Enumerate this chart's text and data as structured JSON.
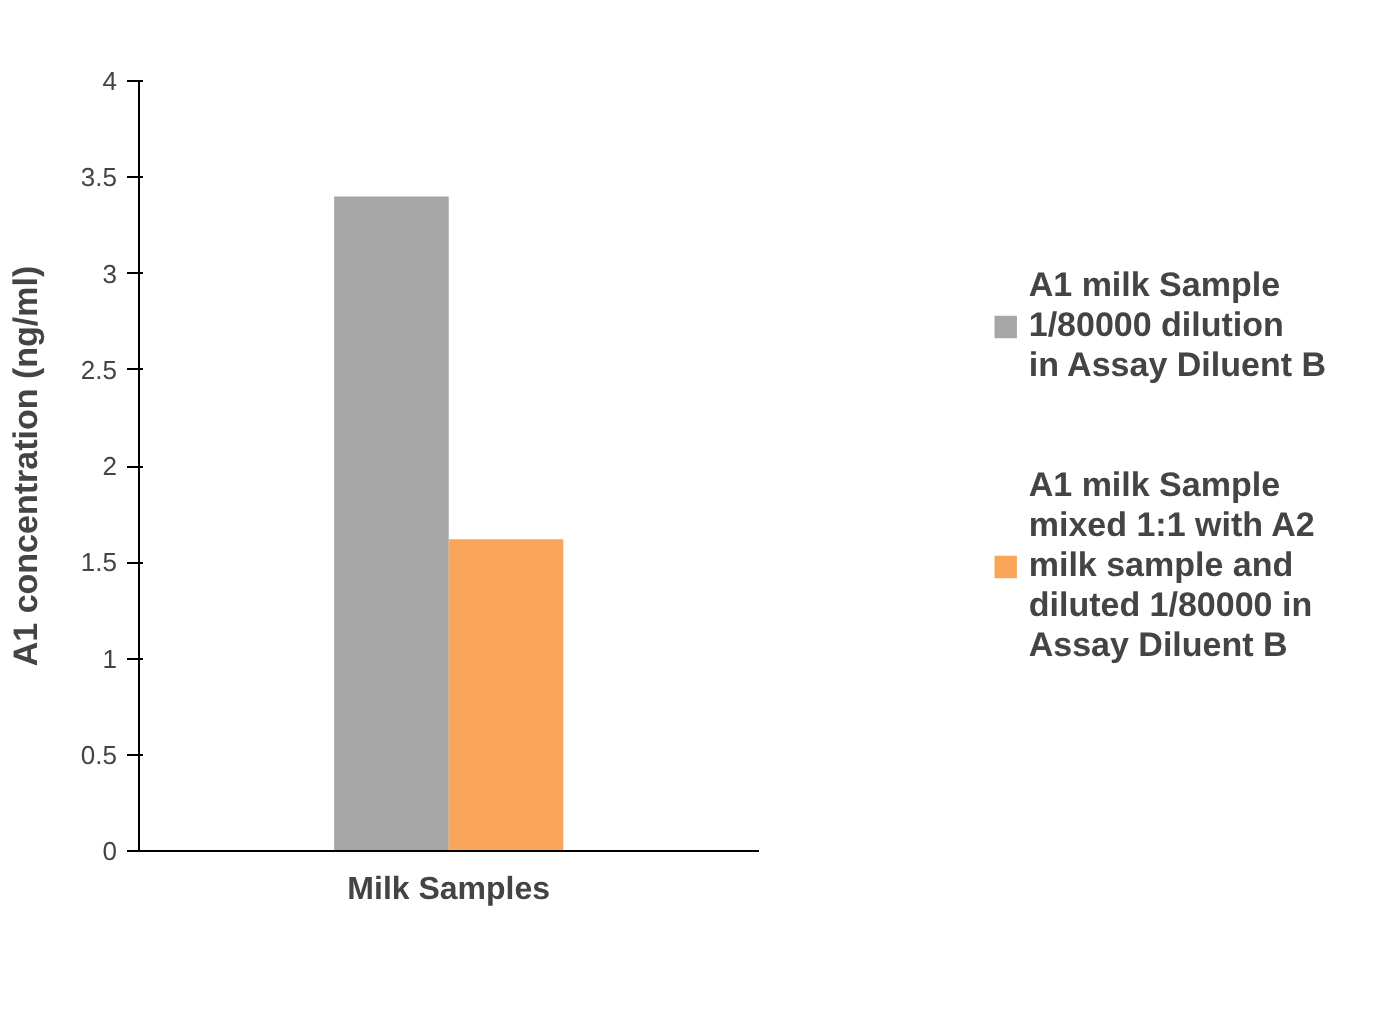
{
  "chart_data": {
    "type": "bar",
    "ylabel": "A1 concentration (ng/ml)",
    "categories": [
      "Milk Samples"
    ],
    "series": [
      {
        "name": "A1 milk Sample 1/80000 dilution in Assay Diluent B",
        "color": "#a6a6a6",
        "values": [
          3.4
        ]
      },
      {
        "name": "A1 milk Sample mixed 1:1 with A2 milk sample and diluted 1/80000 in Assay Diluent B",
        "color": "#f9a65a",
        "values": [
          1.62
        ]
      }
    ],
    "ylim": [
      0,
      4
    ],
    "yticks": [
      0,
      0.5,
      1,
      1.5,
      2,
      2.5,
      3,
      3.5,
      4
    ],
    "legend": "right"
  }
}
